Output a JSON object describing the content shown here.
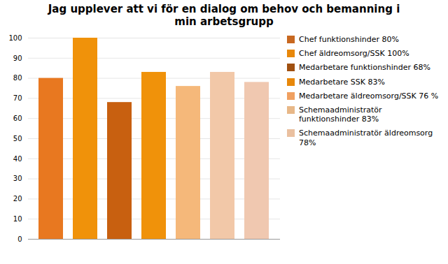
{
  "chart_data": {
    "type": "bar",
    "title": "Jag upplever att vi för en dialog om behov och bemanning i\nmin arbetsgrupp",
    "categories": [
      "Chef funktionshinder 80%",
      "Chef äldreomsorg/SSK 100%",
      "Medarbetare funktionshinder 68%",
      "Medarbetare SSK 83%",
      "Medarbetare äldreomsorg/SSK 76 %",
      "Schemaadministratör\nfunktionshinder 83%",
      "Schemaadministratör äldreomsorg\n78%"
    ],
    "values": [
      80,
      100,
      68,
      83,
      76,
      83,
      78
    ],
    "colors": [
      "#E87820",
      "#F0920A",
      "#C86010",
      "#F0920A",
      "#F5B87A",
      "#F2C8A8",
      "#F0C8B0"
    ],
    "legend_colors": [
      "#C86820",
      "#E8880A",
      "#A05010",
      "#E8880A",
      "#F0A060",
      "#E8B888",
      "#EAC0A0"
    ],
    "legend": "right",
    "tick_labels": "y",
    "ylim": [
      0,
      100
    ],
    "yticks": [
      0,
      10,
      20,
      30,
      40,
      50,
      60,
      70,
      80,
      90,
      100
    ],
    "grid": true
  }
}
